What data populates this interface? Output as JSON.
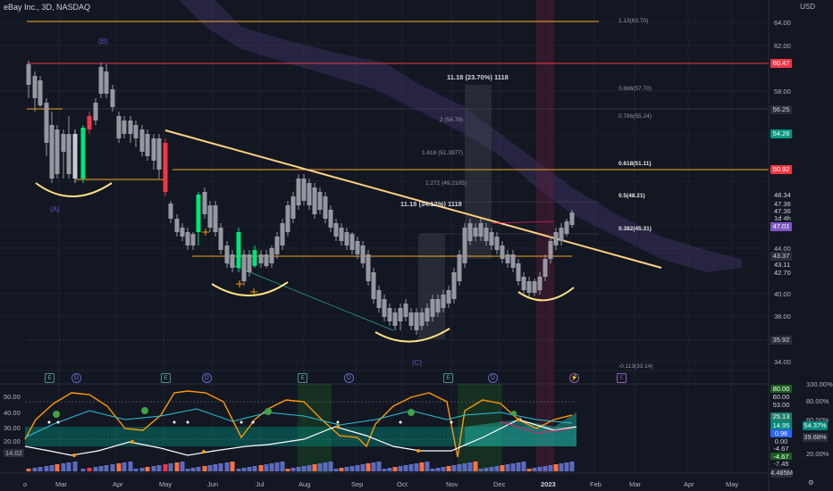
{
  "header": {
    "title": "eBay Inc., 3D, NASDAQ",
    "currency": "USD"
  },
  "price_axis": [
    "64.00",
    "62.00",
    "58.00",
    "56.25",
    "54.26",
    "50.92",
    "48.34",
    "47.36",
    "47.36",
    "1d 4h",
    "47.01",
    "44.00",
    "43.37",
    "43.11",
    "42.70",
    "40.00",
    "38.00",
    "35.92",
    "34.00"
  ],
  "price_tags": [
    {
      "label": "60.47",
      "color": "#f23645"
    },
    {
      "label": "56.25",
      "color": "#2a2e39"
    },
    {
      "label": "54.26",
      "color": "#089981"
    },
    {
      "label": "50.92",
      "color": "#f23645"
    },
    {
      "label": "47.01",
      "color": "#7e57c2"
    },
    {
      "label": "43.37",
      "color": "#2a2e39"
    },
    {
      "label": "35.92",
      "color": "#2a2e39"
    }
  ],
  "fib_levels": [
    "1.13(63.70)",
    "0.886(57.70)",
    "0.786(55.24)",
    "0.618(51.11)",
    "0.5(48.21)",
    "0.382(45.31)",
    "-0.113(33.14)",
    "1.618 (51.3977)",
    "1.272 (49.2105)",
    "2 (54.78)"
  ],
  "annotations": [
    "11.18 (23.70%) 1118",
    "11.18 (34.12%) 1118"
  ],
  "wave_labels": [
    "(B)",
    "(A)",
    "(C)"
  ],
  "events": [
    "E",
    "D",
    "E",
    "D",
    "E",
    "D",
    "E",
    "D"
  ],
  "oscillator": {
    "left_ticks": [
      "50.00",
      "40.00",
      "30.00",
      "20.00",
      "14.02"
    ],
    "right_tags": [
      {
        "label": "80.00",
        "color": "#1b5e20"
      },
      {
        "label": "60.00",
        "color": "#131722"
      },
      {
        "label": "53.00",
        "color": "#131722"
      },
      {
        "label": "25.13",
        "color": "#1e7e6a"
      },
      {
        "label": "14.95",
        "color": "#00897b"
      },
      {
        "label": "0.96",
        "color": "#2962ff"
      },
      {
        "label": "0.00",
        "color": "#131722"
      },
      {
        "label": "-4.67",
        "color": "#131722"
      },
      {
        "label": "-4.67",
        "color": "#1b5e20"
      },
      {
        "label": "-7.45",
        "color": "#131722"
      },
      {
        "label": "4.485M",
        "color": "#2a2e39"
      }
    ],
    "right_pct": [
      "100.00%",
      "80.00%",
      "60.00%",
      "54.37%",
      "39.68%",
      "20.00%"
    ]
  },
  "x_labels": [
    "Mar",
    "Apr",
    "May",
    "Jun",
    "Jul",
    "Aug",
    "Sep",
    "Oct",
    "Nov",
    "Dec",
    "2023",
    "Feb",
    "Mar",
    "Apr",
    "May"
  ]
}
